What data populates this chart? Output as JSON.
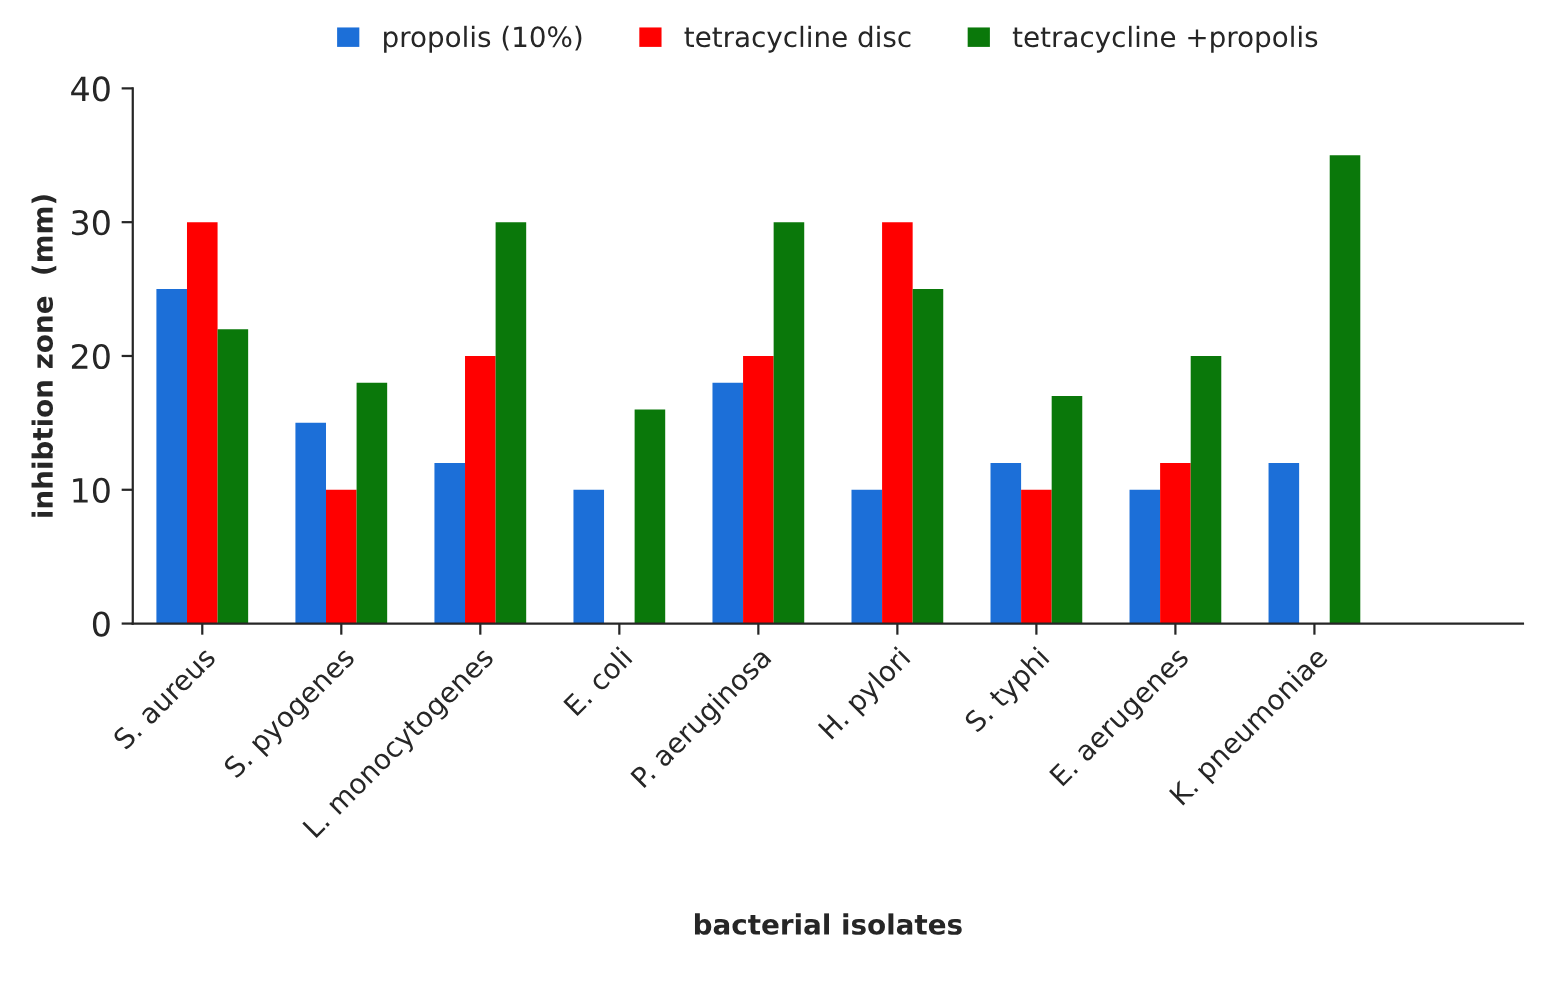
{
  "chart_data": {
    "type": "bar",
    "xlabel": "bacterial isolates",
    "ylabel": "inhibtion zone  (mm)",
    "categories": [
      "S. aureus",
      "S. pyogenes",
      "L. monocytogenes",
      "E. coli",
      "P. aeruginosa",
      "H. pylori",
      "S. typhi",
      "E. aerugenes",
      "K. pneumoniae"
    ],
    "series": [
      {
        "name": "propolis (10%)",
        "color": "#1c6fd8",
        "values": [
          25,
          15,
          12,
          10,
          18,
          10,
          12,
          10,
          12
        ]
      },
      {
        "name": "tetracycline disc",
        "color": "#ff0000",
        "values": [
          30,
          10,
          20,
          0,
          20,
          30,
          10,
          12,
          0
        ]
      },
      {
        "name": "tetracycline +propolis",
        "color": "#0a780a",
        "values": [
          22,
          18,
          30,
          16,
          30,
          25,
          17,
          20,
          35
        ]
      }
    ],
    "ylim": [
      0,
      40
    ],
    "yticks": [
      0,
      10,
      20,
      30,
      40
    ],
    "grid": false,
    "legend": "top"
  }
}
